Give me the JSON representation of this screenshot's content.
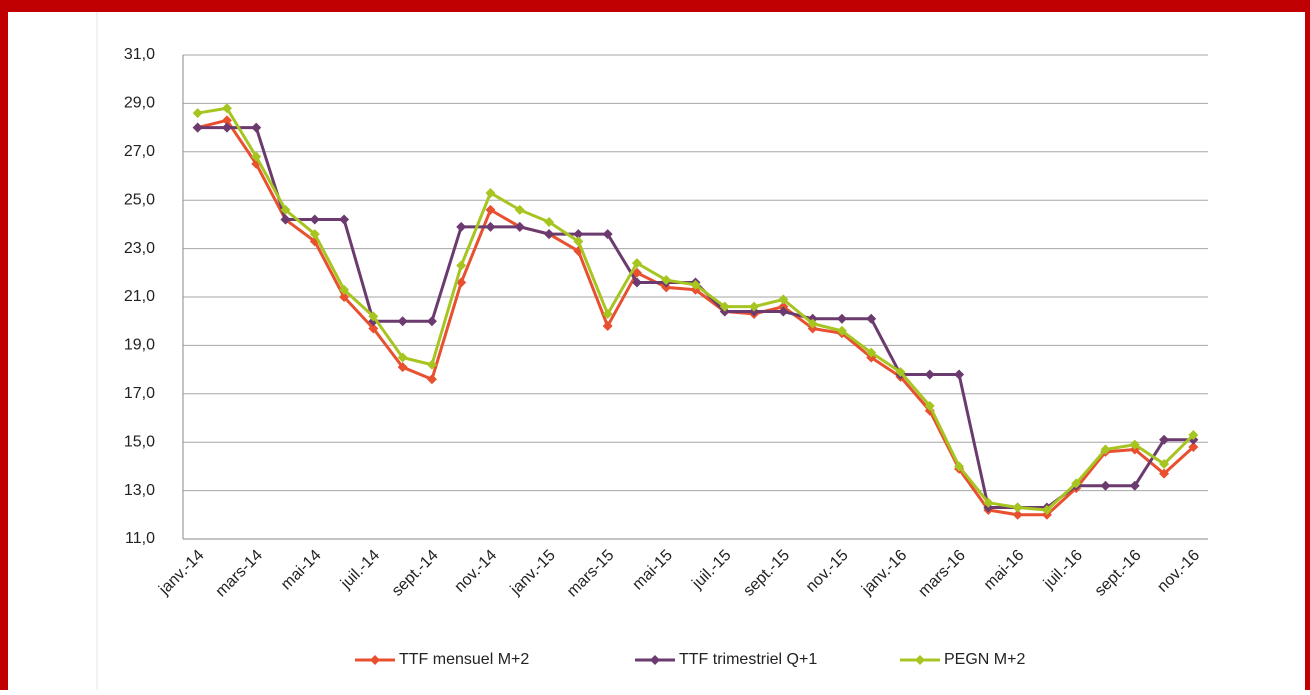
{
  "chart_data": {
    "type": "line",
    "categories": [
      "janv.-14",
      null,
      "mars-14",
      null,
      "mai-14",
      null,
      "juil.-14",
      null,
      "sept.-14",
      null,
      "nov.-14",
      null,
      "janv.-15",
      null,
      "mars-15",
      null,
      "mai-15",
      null,
      "juil.-15",
      null,
      "sept.-15",
      null,
      "nov.-15",
      null,
      "janv.-16",
      null,
      "mars-16",
      null,
      "mai-16",
      null,
      "juil.-16",
      null,
      "sept.-16",
      null,
      "nov.-16"
    ],
    "series": [
      {
        "name": "TTF mensuel M+2",
        "color": "#e8502f",
        "values": [
          28.0,
          28.3,
          26.5,
          24.2,
          23.3,
          21.0,
          19.7,
          18.1,
          17.6,
          21.6,
          24.6,
          23.9,
          23.6,
          22.9,
          19.8,
          22.0,
          21.4,
          21.3,
          20.4,
          20.3,
          20.6,
          19.7,
          19.5,
          18.5,
          17.7,
          16.3,
          13.9,
          12.2,
          12.0,
          12.0,
          13.1,
          14.6,
          14.7,
          13.7,
          14.8
        ]
      },
      {
        "name": "TTF trimestriel Q+1",
        "color": "#6b3a6e",
        "values": [
          28.0,
          28.0,
          28.0,
          24.2,
          24.2,
          24.2,
          20.0,
          20.0,
          20.0,
          23.9,
          23.9,
          23.9,
          23.6,
          23.6,
          23.6,
          21.6,
          21.6,
          21.6,
          20.4,
          20.4,
          20.4,
          20.1,
          20.1,
          20.1,
          17.8,
          17.8,
          17.8,
          12.3,
          12.3,
          12.3,
          13.2,
          13.2,
          13.2,
          15.1,
          15.1
        ]
      },
      {
        "name": "PEGN M+2",
        "color": "#a7c520",
        "values": [
          28.6,
          28.8,
          26.8,
          24.6,
          23.6,
          21.3,
          20.2,
          18.5,
          18.2,
          22.3,
          25.3,
          24.6,
          24.1,
          23.3,
          20.3,
          22.4,
          21.7,
          21.5,
          20.6,
          20.6,
          20.9,
          19.9,
          19.6,
          18.7,
          17.9,
          16.5,
          14.0,
          12.5,
          12.3,
          12.2,
          13.3,
          14.7,
          14.9,
          14.1,
          15.3
        ]
      }
    ],
    "ylim": [
      11,
      31
    ],
    "yticks": [
      {
        "value": 11,
        "label": "11,0"
      },
      {
        "value": 13,
        "label": "13,0"
      },
      {
        "value": 15,
        "label": "15,0"
      },
      {
        "value": 17,
        "label": "17,0"
      },
      {
        "value": 19,
        "label": "19,0"
      },
      {
        "value": 21,
        "label": "21,0"
      },
      {
        "value": 23,
        "label": "23,0"
      },
      {
        "value": 25,
        "label": "25,0"
      },
      {
        "value": 27,
        "label": "27,0"
      },
      {
        "value": 29,
        "label": "29,0"
      },
      {
        "value": 31,
        "label": "31,0"
      }
    ],
    "grid": true,
    "legend": "bottom"
  }
}
